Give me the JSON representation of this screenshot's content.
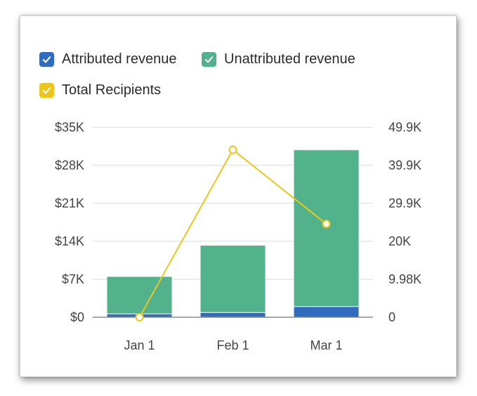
{
  "legend": [
    {
      "label": "Attributed revenue",
      "color": "#2f6cc0",
      "checked": true,
      "icon": "check-icon"
    },
    {
      "label": "Unattributed revenue",
      "color": "#52b28c",
      "checked": true,
      "icon": "check-icon"
    },
    {
      "label": "Total Recipients",
      "color": "#ebc61d",
      "checked": true,
      "icon": "check-icon"
    }
  ],
  "chart_data": {
    "type": "bar",
    "stacked": true,
    "categories": [
      "Jan 1",
      "Feb 1",
      "Mar 1"
    ],
    "series": [
      {
        "name": "Attributed revenue",
        "type": "bar",
        "axis": "left",
        "color": "#2f6cc0",
        "values": [
          550,
          800,
          1900
        ]
      },
      {
        "name": "Unattributed revenue",
        "type": "bar",
        "axis": "left",
        "color": "#52b28c",
        "values": [
          6900,
          12400,
          28900
        ]
      },
      {
        "name": "Total Recipients",
        "type": "line",
        "axis": "right",
        "color": "#ebc61d",
        "values": [
          0,
          44000,
          24500
        ]
      }
    ],
    "y_left": {
      "min": 0,
      "max": 35000,
      "ticks": [
        0,
        7000,
        14000,
        21000,
        28000,
        35000
      ],
      "tick_labels": [
        "$0",
        "$7K",
        "$14K",
        "$21K",
        "$28K",
        "$35K"
      ]
    },
    "y_right": {
      "min": 0,
      "max": 49900,
      "ticks": [
        0,
        9980,
        20000,
        29900,
        39900,
        49900
      ],
      "tick_labels": [
        "0",
        "9.98K",
        "20K",
        "29.9K",
        "39.9K",
        "49.9K"
      ]
    },
    "grid": true,
    "legend_position": "top-left"
  }
}
